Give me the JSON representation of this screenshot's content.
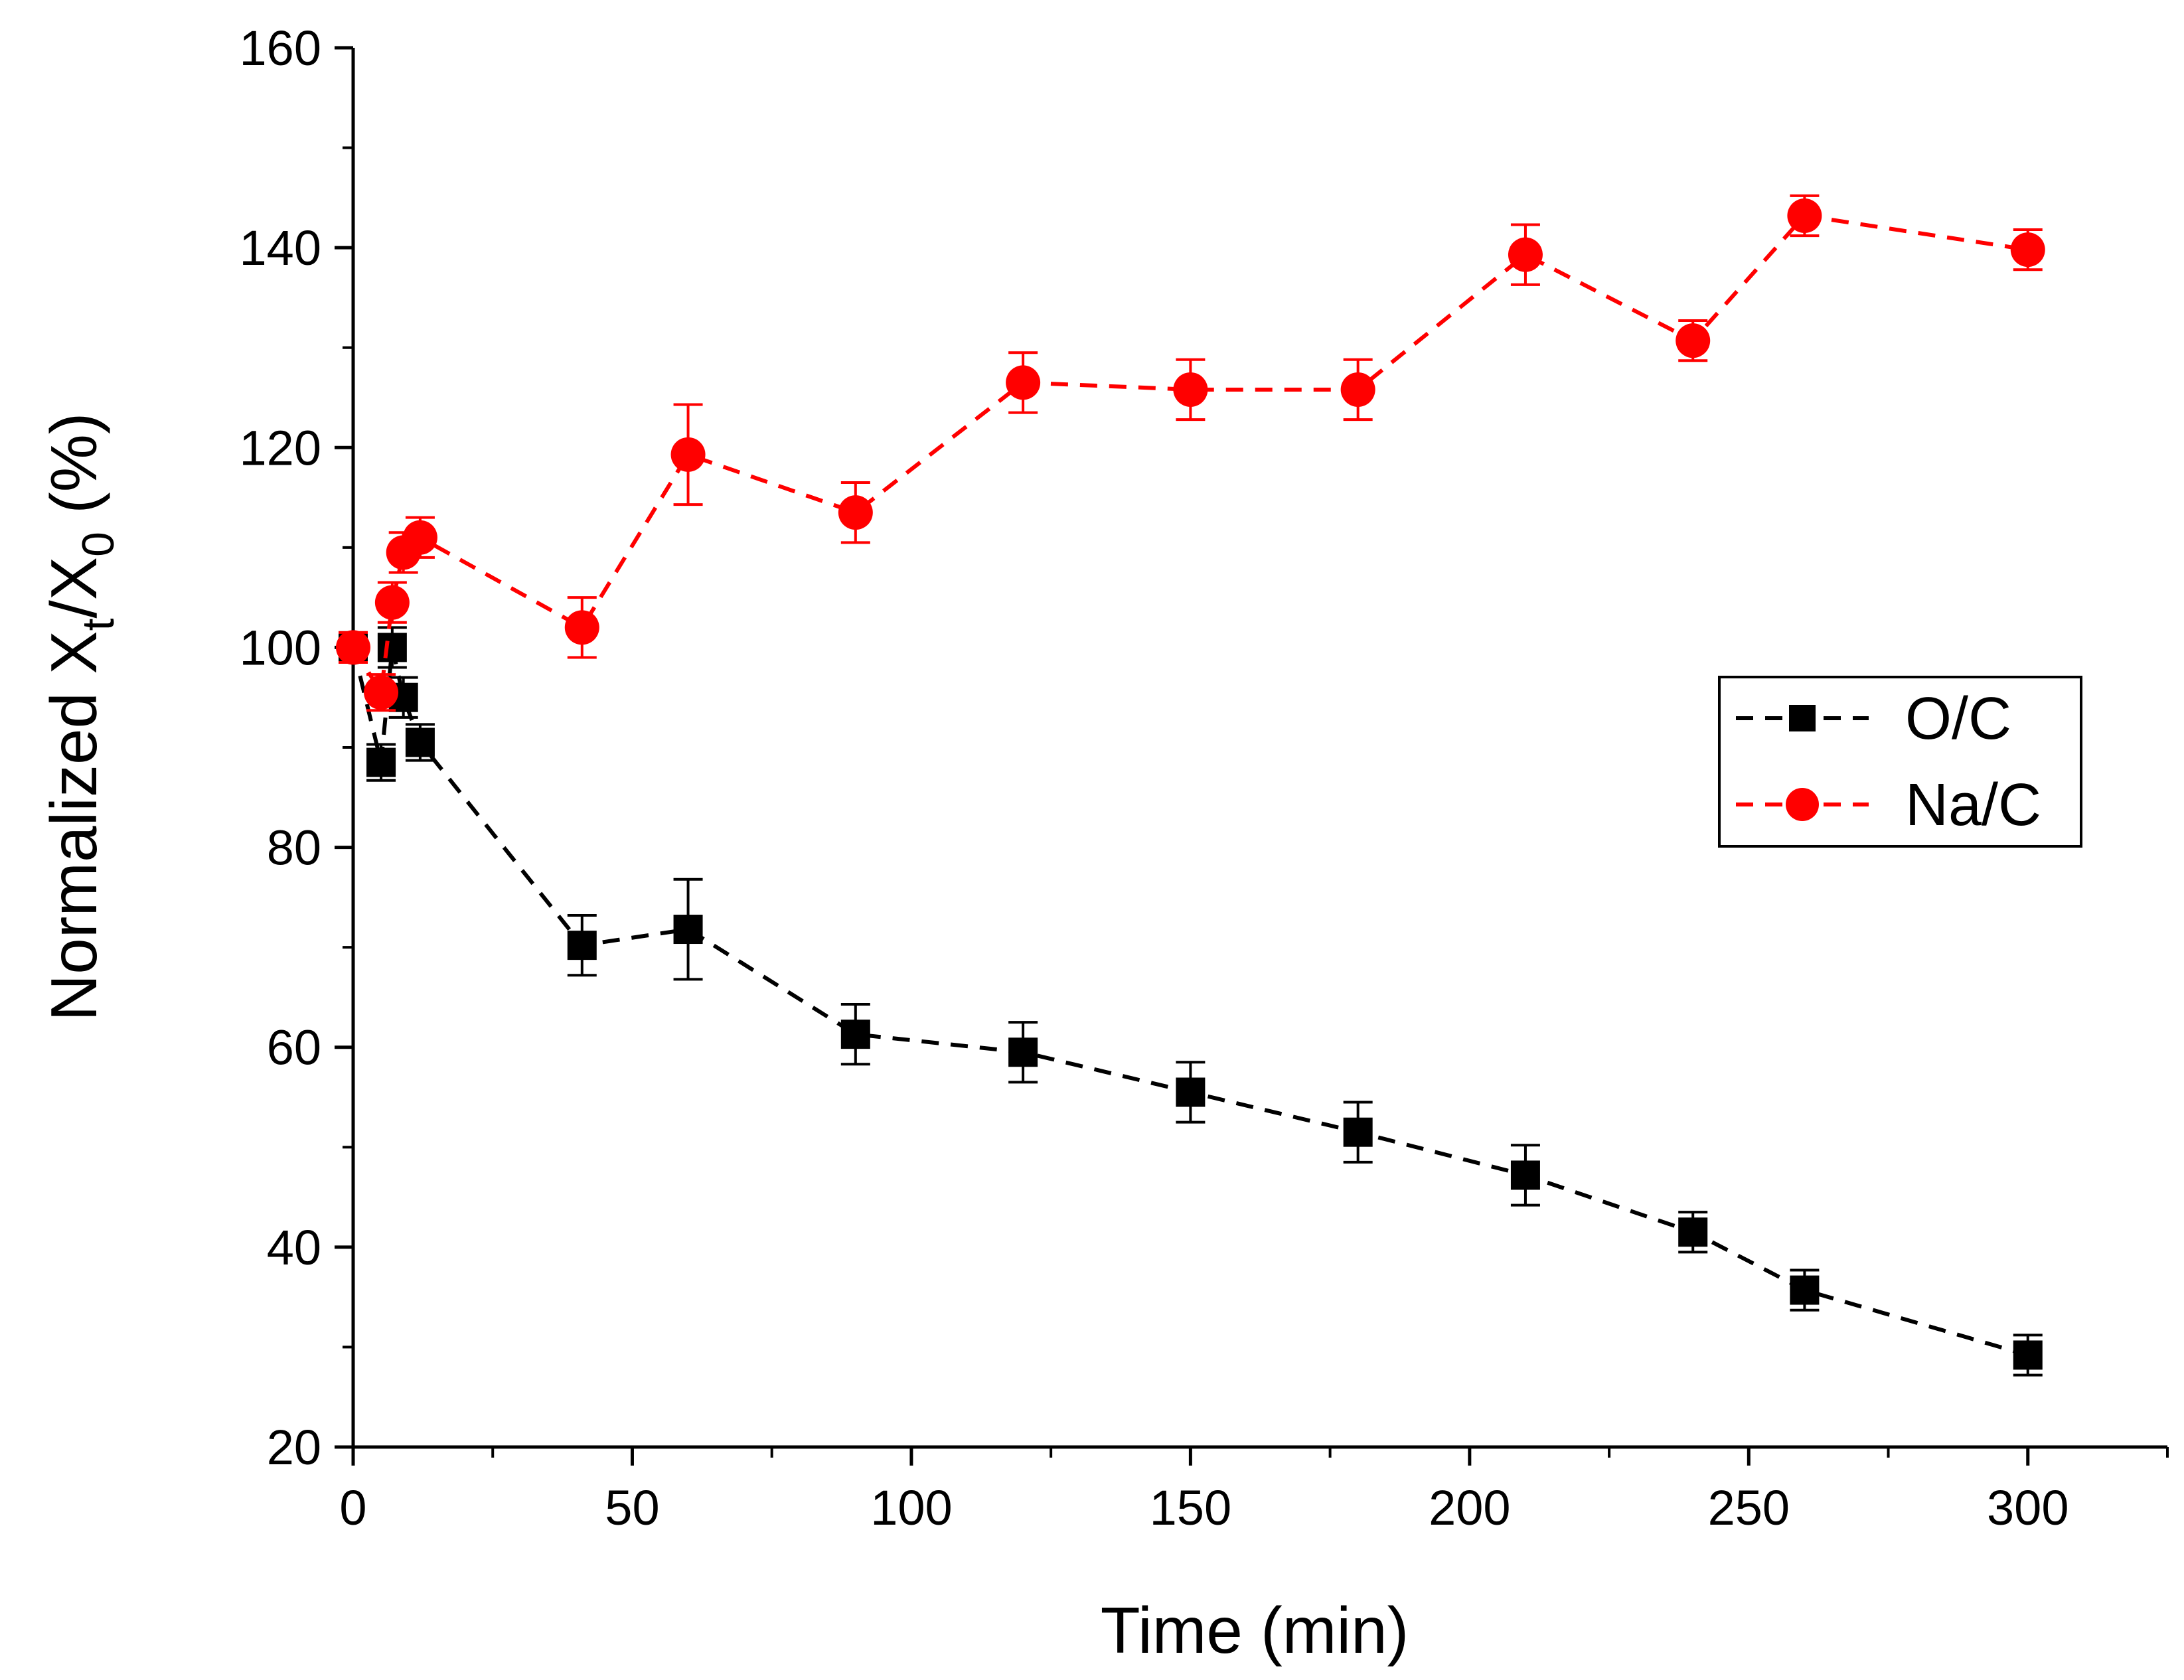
{
  "chart_data": {
    "type": "line",
    "title": "",
    "xlabel": "Time (min)",
    "ylabel": {
      "prefix": "Normalized X",
      "sub1": "t",
      "middle": "/X",
      "sub2": "0",
      "suffix": " (%)"
    },
    "xlim": [
      0,
      325
    ],
    "ylim": [
      20,
      160
    ],
    "xticks": [
      0,
      50,
      100,
      150,
      200,
      250,
      300
    ],
    "xminor": [
      25,
      75,
      125,
      175,
      225,
      275,
      325
    ],
    "yticks": [
      20,
      40,
      60,
      80,
      100,
      120,
      140,
      160
    ],
    "yminor": [
      30,
      50,
      70,
      90,
      110,
      130,
      150
    ],
    "grid": false,
    "legend_position": "right",
    "series": [
      {
        "name": "O/C",
        "color": "#000000",
        "marker": "square",
        "x": [
          0,
          5,
          7,
          9,
          12,
          41,
          60,
          90,
          120,
          150,
          180,
          210,
          240,
          260,
          300
        ],
        "values": [
          100,
          88.5,
          100,
          95,
          90.5,
          70.2,
          71.8,
          61.3,
          59.5,
          55.5,
          51.5,
          47.2,
          41.5,
          35.7,
          29.2
        ],
        "errors": [
          1.5,
          1.8,
          2.0,
          2.0,
          1.8,
          3.0,
          5.0,
          3.0,
          3.0,
          3.0,
          3.0,
          3.0,
          2.0,
          2.0,
          2.0
        ]
      },
      {
        "name": "Na/C",
        "color": "#ff0000",
        "marker": "circle",
        "x": [
          0,
          5,
          7,
          9,
          12,
          41,
          60,
          90,
          120,
          150,
          180,
          210,
          240,
          260,
          300
        ],
        "values": [
          100,
          95.5,
          104.5,
          109.5,
          111,
          102,
          119.3,
          113.5,
          126.5,
          125.8,
          125.8,
          139.3,
          130.7,
          143.2,
          139.8
        ],
        "errors": [
          1.5,
          1.8,
          2.0,
          2.0,
          2.0,
          3.0,
          5.0,
          3.0,
          3.0,
          3.0,
          3.0,
          3.0,
          2.0,
          2.0,
          2.0
        ]
      }
    ]
  }
}
